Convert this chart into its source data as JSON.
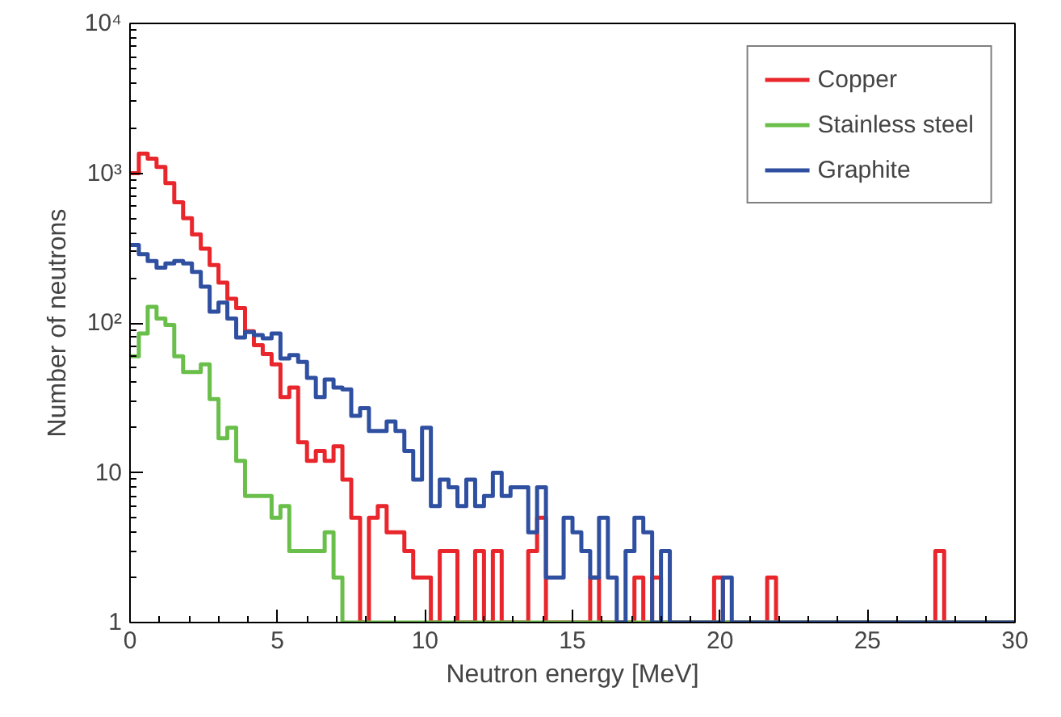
{
  "chart_data": {
    "type": "histogram",
    "xlabel": "Neutron energy [MeV]",
    "ylabel": "Number of neutrons",
    "bins": [
      0,
      0.3,
      0.6,
      0.9,
      1.2,
      1.5,
      1.8,
      2.1,
      2.4,
      2.7,
      3,
      3.3,
      3.6,
      3.9,
      4.2,
      4.5,
      4.8,
      5.1,
      5.4,
      5.7,
      6,
      6.3,
      6.6,
      6.9,
      7.2,
      7.5,
      7.8,
      8.1,
      8.4,
      8.7,
      9,
      9.3,
      9.6,
      9.9,
      10.2,
      10.5,
      10.8,
      11.1,
      11.4,
      11.7,
      12,
      12.3,
      12.6,
      12.9,
      13.2,
      13.5,
      13.8,
      14.1,
      14.4,
      14.7,
      15,
      15.3,
      15.6,
      15.9,
      16.2,
      16.5,
      16.8,
      17.1,
      17.4,
      17.7,
      18,
      18.3,
      18.6,
      18.9,
      19.2,
      19.5,
      19.8,
      20.1,
      20.4,
      20.7,
      21,
      21.3,
      21.6,
      21.9,
      22.2,
      22.5,
      22.8,
      23.1,
      23.4,
      23.7,
      24,
      24.3,
      24.6,
      24.9,
      25.2,
      25.5,
      25.8,
      26.1,
      26.4,
      26.7,
      27,
      27.3,
      27.6,
      27.9,
      28.2,
      28.5,
      28.8,
      29.1,
      29.4,
      29.7,
      30
    ],
    "series": [
      {
        "name": "Copper",
        "color": "#e8262b",
        "values": [
          1000,
          1350,
          1250,
          1100,
          860,
          640,
          500,
          390,
          313,
          244,
          186,
          145,
          126,
          88,
          71,
          62,
          53,
          32,
          37,
          16,
          12,
          14,
          12,
          15,
          9,
          5,
          1,
          5,
          6,
          4,
          4,
          3,
          2,
          2,
          1,
          3,
          3,
          1,
          1,
          3,
          1,
          3,
          1,
          1,
          1,
          3,
          5,
          1,
          1,
          1,
          1,
          1,
          2,
          1,
          1,
          1,
          1,
          2,
          1,
          2,
          1,
          1,
          1,
          1,
          1,
          1,
          2,
          1,
          1,
          1,
          1,
          1,
          2,
          1,
          1,
          1,
          1,
          1,
          1,
          1,
          1,
          1,
          1,
          1,
          1,
          1,
          1,
          1,
          1,
          1,
          1,
          3,
          1,
          1,
          1,
          1,
          1,
          1,
          1,
          1
        ]
      },
      {
        "name": "Stainless steel",
        "color": "#6abf4b",
        "values": [
          60,
          85,
          128,
          107,
          97,
          60,
          47,
          47,
          53,
          31,
          17,
          20,
          12,
          7,
          7,
          7,
          5,
          6,
          3,
          3,
          3,
          3,
          4,
          2,
          1,
          1,
          1,
          1,
          1,
          1,
          1,
          1,
          1,
          1,
          1,
          1,
          1,
          1,
          1,
          1,
          1,
          1,
          1,
          1,
          1,
          1,
          1,
          1,
          1,
          1,
          1,
          1,
          1,
          1,
          1,
          1,
          1,
          1,
          1,
          1,
          1,
          1,
          1,
          1,
          1,
          1,
          1,
          1,
          1,
          1,
          1,
          1,
          1,
          1,
          1,
          1,
          1,
          1,
          1,
          1,
          1,
          1,
          1,
          1,
          1,
          1,
          1,
          1,
          1,
          1,
          1,
          1,
          1,
          1,
          1,
          1,
          1,
          1,
          1,
          1
        ]
      },
      {
        "name": "Graphite",
        "color": "#2f4fa1",
        "values": [
          331,
          288,
          259,
          234,
          250,
          259,
          250,
          219,
          175,
          119,
          137,
          107,
          80,
          87,
          83,
          79,
          85,
          58,
          61,
          55,
          43,
          32,
          42,
          37,
          36,
          24,
          27,
          19,
          19,
          22,
          19,
          14,
          9,
          20,
          6,
          9,
          8,
          6,
          9,
          6,
          7,
          10,
          7,
          8,
          8,
          4,
          8,
          2,
          2,
          5,
          4,
          3,
          2,
          5,
          2,
          1,
          3,
          5,
          4,
          1,
          3,
          1,
          1,
          1,
          1,
          1,
          1,
          2,
          1,
          1,
          1,
          1,
          1,
          1,
          1,
          1,
          1,
          1,
          1,
          1,
          1,
          1,
          1,
          1,
          1,
          1,
          1,
          1,
          1,
          1,
          1,
          1,
          1,
          1,
          1,
          1,
          1,
          1,
          1,
          1
        ]
      }
    ],
    "xlim": [
      0,
      30
    ],
    "xticks": [
      0,
      5,
      10,
      15,
      20,
      25,
      30
    ],
    "ylim": [
      1,
      10000
    ],
    "yticks": [
      1,
      10,
      {
        "value": 100,
        "label": "10²"
      },
      {
        "value": 1000,
        "label": "10³"
      },
      {
        "value": 10000,
        "label": "10⁴"
      }
    ],
    "log": true,
    "grid": false,
    "legend": "top right"
  }
}
